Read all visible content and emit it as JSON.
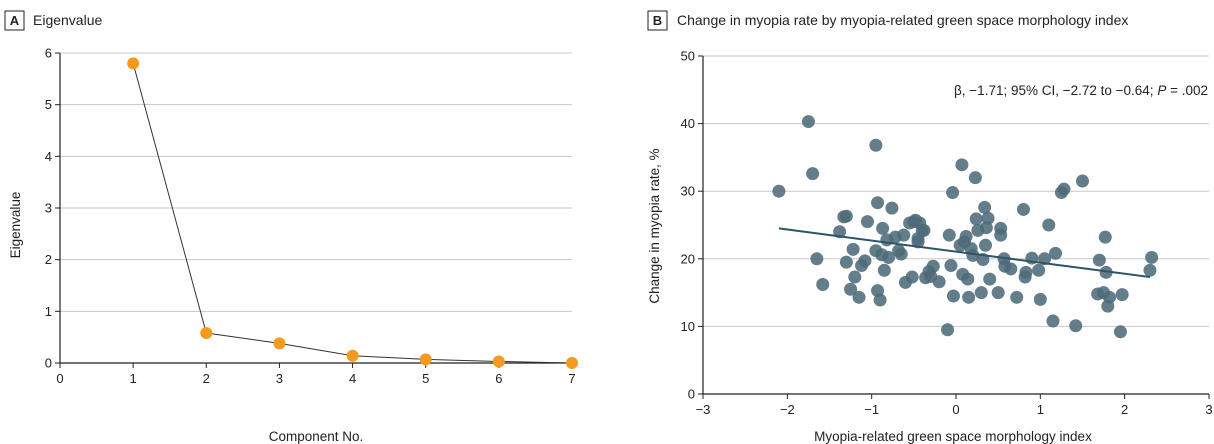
{
  "chart_data": [
    {
      "type": "line",
      "panel_letter": "A",
      "title": "Eigenvalue",
      "xlabel": "Component No.",
      "ylabel": "Eigenvalue",
      "xlim": [
        0,
        7
      ],
      "ylim": [
        0,
        6
      ],
      "xticks": [
        "0",
        "1",
        "2",
        "3",
        "4",
        "5",
        "6",
        "7"
      ],
      "yticks": [
        "0",
        "1",
        "2",
        "3",
        "4",
        "5",
        "6"
      ],
      "grid": "horizontal",
      "x": [
        1,
        2,
        3,
        4,
        5,
        6,
        7
      ],
      "series": [
        {
          "values": [
            5.8,
            0.58,
            0.38,
            0.14,
            0.07,
            0.03,
            0.0
          ]
        }
      ],
      "colors": {
        "marker": "#F39A1F",
        "line": "#333333",
        "grid": "#c8c8c8"
      }
    },
    {
      "type": "scatter",
      "panel_letter": "B",
      "title": "Change in myopia rate by myopia-related green space morphology index",
      "xlabel": "Myopia-related green space morphology index",
      "ylabel": "Change in myopia rate, %",
      "xlim": [
        -3,
        3
      ],
      "ylim": [
        0,
        50
      ],
      "xticks": [
        "−3",
        "−2",
        "−1",
        "0",
        "1",
        "2",
        "3"
      ],
      "yticks": [
        "0",
        "10",
        "20",
        "30",
        "40",
        "50"
      ],
      "grid": "horizontal",
      "annotation": {
        "prefix": "β, −1.71; 95% CI, −2.72 to −0.64; ",
        "p_symbol": "P",
        "suffix": " = .002"
      },
      "regression": {
        "x": [
          -2.1,
          2.3
        ],
        "y": [
          24.5,
          17.3
        ]
      },
      "points": [
        [
          -2.1,
          30
        ],
        [
          -1.75,
          40.3
        ],
        [
          -1.7,
          32.6
        ],
        [
          -1.65,
          20
        ],
        [
          -1.58,
          16.2
        ],
        [
          -1.38,
          24
        ],
        [
          -1.33,
          26.2
        ],
        [
          -1.3,
          26.3
        ],
        [
          -1.3,
          19.5
        ],
        [
          -1.25,
          15.5
        ],
        [
          -1.22,
          21.4
        ],
        [
          -1.2,
          17.3
        ],
        [
          -1.15,
          14.3
        ],
        [
          -1.12,
          19
        ],
        [
          -1.08,
          19.7
        ],
        [
          -1.05,
          25.5
        ],
        [
          -0.95,
          36.8
        ],
        [
          -0.95,
          21.2
        ],
        [
          -0.93,
          28.3
        ],
        [
          -0.93,
          15.3
        ],
        [
          -0.9,
          13.9
        ],
        [
          -0.88,
          20.6
        ],
        [
          -0.87,
          24.5
        ],
        [
          -0.85,
          18.3
        ],
        [
          -0.82,
          22.8
        ],
        [
          -0.8,
          20.2
        ],
        [
          -0.76,
          27.5
        ],
        [
          -0.72,
          23.2
        ],
        [
          -0.68,
          21.2
        ],
        [
          -0.65,
          20.7
        ],
        [
          -0.62,
          23.5
        ],
        [
          -0.6,
          16.5
        ],
        [
          -0.55,
          25.3
        ],
        [
          -0.52,
          17.3
        ],
        [
          -0.5,
          25.5
        ],
        [
          -0.48,
          25.7
        ],
        [
          -0.45,
          23
        ],
        [
          -0.45,
          22.5
        ],
        [
          -0.43,
          25.3
        ],
        [
          -0.4,
          24.2
        ],
        [
          -0.38,
          24.2
        ],
        [
          -0.36,
          17.2
        ],
        [
          -0.32,
          18.1
        ],
        [
          -0.3,
          17.4
        ],
        [
          -0.27,
          18.9
        ],
        [
          -0.2,
          16.6
        ],
        [
          -0.1,
          9.5
        ],
        [
          -0.08,
          23.5
        ],
        [
          -0.06,
          19
        ],
        [
          -0.04,
          29.8
        ],
        [
          -0.03,
          14.5
        ],
        [
          0.05,
          22
        ],
        [
          0.07,
          33.9
        ],
        [
          0.08,
          17.7
        ],
        [
          0.1,
          22.5
        ],
        [
          0.12,
          23.3
        ],
        [
          0.14,
          17
        ],
        [
          0.15,
          14.3
        ],
        [
          0.18,
          21.5
        ],
        [
          0.2,
          20.5
        ],
        [
          0.23,
          32
        ],
        [
          0.24,
          25.9
        ],
        [
          0.26,
          24.2
        ],
        [
          0.3,
          15
        ],
        [
          0.32,
          19.9
        ],
        [
          0.34,
          27.6
        ],
        [
          0.35,
          22
        ],
        [
          0.36,
          24.6
        ],
        [
          0.38,
          26
        ],
        [
          0.4,
          17
        ],
        [
          0.5,
          15
        ],
        [
          0.53,
          24.5
        ],
        [
          0.53,
          23.5
        ],
        [
          0.57,
          20
        ],
        [
          0.58,
          18.9
        ],
        [
          0.65,
          18.5
        ],
        [
          0.72,
          14.3
        ],
        [
          0.8,
          27.3
        ],
        [
          0.82,
          17.3
        ],
        [
          0.83,
          18
        ],
        [
          0.9,
          20.1
        ],
        [
          0.98,
          18.3
        ],
        [
          1.0,
          14
        ],
        [
          1.05,
          20
        ],
        [
          1.1,
          25
        ],
        [
          1.15,
          10.8
        ],
        [
          1.18,
          20.8
        ],
        [
          1.25,
          29.8
        ],
        [
          1.28,
          30.3
        ],
        [
          1.42,
          10.1
        ],
        [
          1.5,
          31.5
        ],
        [
          1.68,
          14.8
        ],
        [
          1.7,
          19.8
        ],
        [
          1.75,
          15
        ],
        [
          1.77,
          23.2
        ],
        [
          1.78,
          18
        ],
        [
          1.8,
          13
        ],
        [
          1.82,
          14.3
        ],
        [
          1.95,
          9.2
        ],
        [
          1.97,
          14.7
        ],
        [
          2.3,
          18.3
        ],
        [
          2.32,
          20.2
        ]
      ],
      "colors": {
        "marker": "#4E6B7A",
        "line": "#2E5566",
        "grid": "#c8c8c8"
      }
    }
  ]
}
